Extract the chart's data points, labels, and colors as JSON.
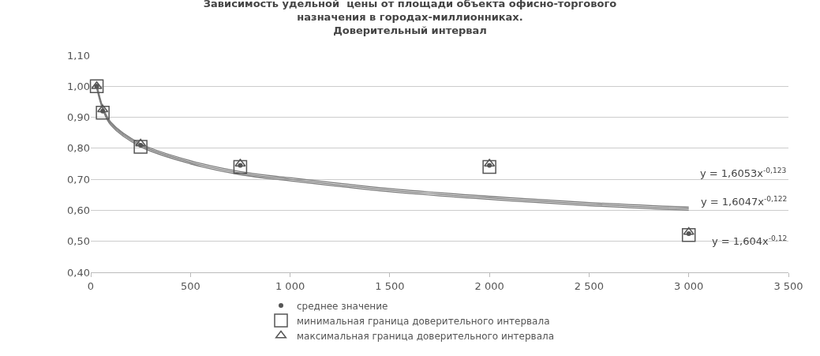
{
  "chart_data": {
    "type": "scatter",
    "title": "Зависимость удельной  цены от площади объекта офисно-торгового назначения в городах-миллионниках. Доверительный интервал",
    "xlim": [
      0,
      3500
    ],
    "xticks": [
      0,
      500,
      {
        "value": 1000,
        "label": "1 000"
      },
      {
        "value": 1500,
        "label": "1 500"
      },
      {
        "value": 2000,
        "label": "2 000"
      },
      {
        "value": 2500,
        "label": "2 500"
      },
      {
        "value": 3000,
        "label": "3 000"
      },
      {
        "value": 3500,
        "label": "3 500"
      }
    ],
    "ylim": [
      0.4,
      1.1
    ],
    "yticks": [
      {
        "value": 0.4,
        "label": "0,40"
      },
      {
        "value": 0.5,
        "label": "0,50"
      },
      {
        "value": 0.6,
        "label": "0,60"
      },
      {
        "value": 0.7,
        "label": "0,70"
      },
      {
        "value": 0.8,
        "label": "0,80"
      },
      {
        "value": 0.9,
        "label": "0,90"
      },
      {
        "value": 1.0,
        "label": "1,00"
      },
      {
        "value": 1.1,
        "label": "1,10"
      }
    ],
    "grid": "y",
    "legend": "bottom",
    "series": [
      {
        "name": "среднее значение",
        "marker": "circle",
        "color": "#555555",
        "x": [
          30,
          60,
          250,
          750,
          2000,
          3000
        ],
        "values": [
          1.0,
          0.92,
          0.81,
          0.745,
          0.745,
          0.525
        ]
      },
      {
        "name": "минимальная граница доверительного интервала",
        "marker": "square",
        "color": "#555555",
        "x": [
          30,
          60,
          250,
          750,
          2000,
          3000
        ],
        "values": [
          1.0,
          0.915,
          0.805,
          0.74,
          0.74,
          0.52
        ]
      },
      {
        "name": "максимальная граница доверительного интервала",
        "marker": "triangle",
        "color": "#555555",
        "x": [
          30,
          60,
          250,
          750,
          2000,
          3000
        ],
        "values": [
          1.0,
          0.925,
          0.815,
          0.75,
          0.75,
          0.53
        ]
      },
      {
        "type": "line",
        "marker": "none",
        "color": "#777777",
        "x": [
          30,
          60,
          100,
          250,
          500,
          750,
          1000,
          1500,
          2000,
          2500,
          3000
        ],
        "values": [
          1.008,
          0.935,
          0.885,
          0.815,
          0.76,
          0.725,
          0.705,
          0.67,
          0.645,
          0.625,
          0.61
        ]
      },
      {
        "type": "line",
        "marker": "none",
        "color": "#777777",
        "x": [
          30,
          60,
          100,
          250,
          500,
          750,
          1000,
          1500,
          2000,
          2500,
          3000
        ],
        "values": [
          1.0,
          0.93,
          0.88,
          0.81,
          0.755,
          0.72,
          0.7,
          0.665,
          0.64,
          0.62,
          0.605
        ]
      },
      {
        "type": "line",
        "marker": "none",
        "color": "#777777",
        "x": [
          30,
          60,
          100,
          250,
          500,
          750,
          1000,
          1500,
          2000,
          2500,
          3000
        ],
        "values": [
          0.992,
          0.925,
          0.875,
          0.805,
          0.75,
          0.715,
          0.695,
          0.66,
          0.635,
          0.615,
          0.6
        ]
      }
    ],
    "annotations": [
      "y = 1,6053x$^{-0,123}$",
      "y = 1,6047x$^{-0,122}$",
      "y = 1,604x$^{-0,12}$"
    ]
  }
}
